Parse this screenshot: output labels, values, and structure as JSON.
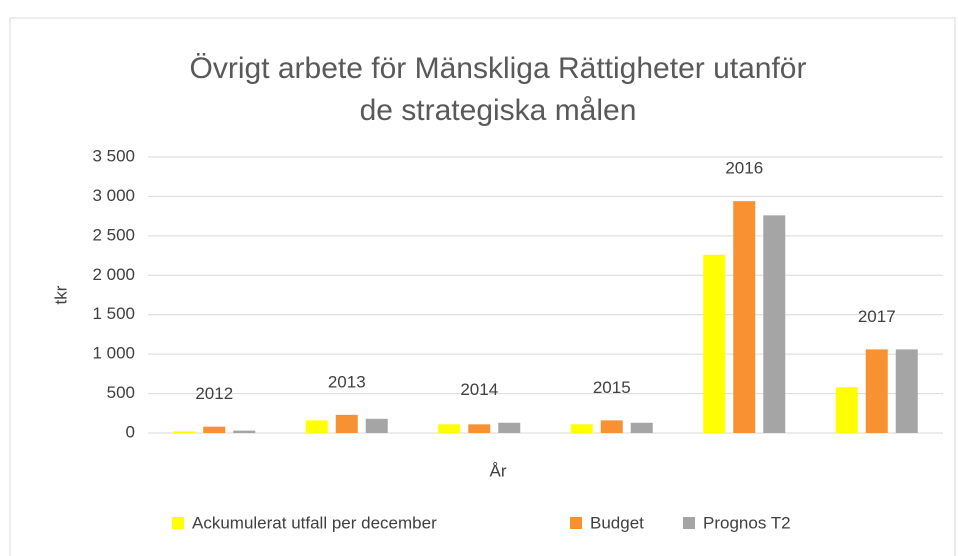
{
  "chart_data": {
    "type": "bar",
    "title": [
      "Övrigt arbete för Mänskliga Rättigheter utanför",
      "de strategiska målen"
    ],
    "x_label": "År",
    "y_label": "tkr",
    "categories": [
      "2012",
      "2013",
      "2014",
      "2015",
      "2016",
      "2017"
    ],
    "series": [
      {
        "name": "Ackumulerat utfall per december",
        "color": "#ffff00",
        "values": [
          20,
          160,
          110,
          110,
          2260,
          580
        ]
      },
      {
        "name": "Budget",
        "color": "#f79132",
        "values": [
          80,
          230,
          110,
          160,
          2940,
          1060
        ]
      },
      {
        "name": "Prognos T2",
        "color": "#a5a5a5",
        "values": [
          30,
          180,
          130,
          130,
          2760,
          1060
        ]
      }
    ],
    "ylim": [
      0,
      3500
    ],
    "yticks": [
      0,
      500,
      {
        "value": 1000,
        "label": "1 000"
      },
      {
        "value": 1500,
        "label": "1 500"
      },
      {
        "value": 2000,
        "label": "2 000"
      },
      {
        "value": 2500,
        "label": "2 500"
      },
      {
        "value": 3000,
        "label": "3 000"
      },
      {
        "value": 3500,
        "label": "3 500"
      }
    ],
    "grid": true,
    "legend": "bottom"
  }
}
